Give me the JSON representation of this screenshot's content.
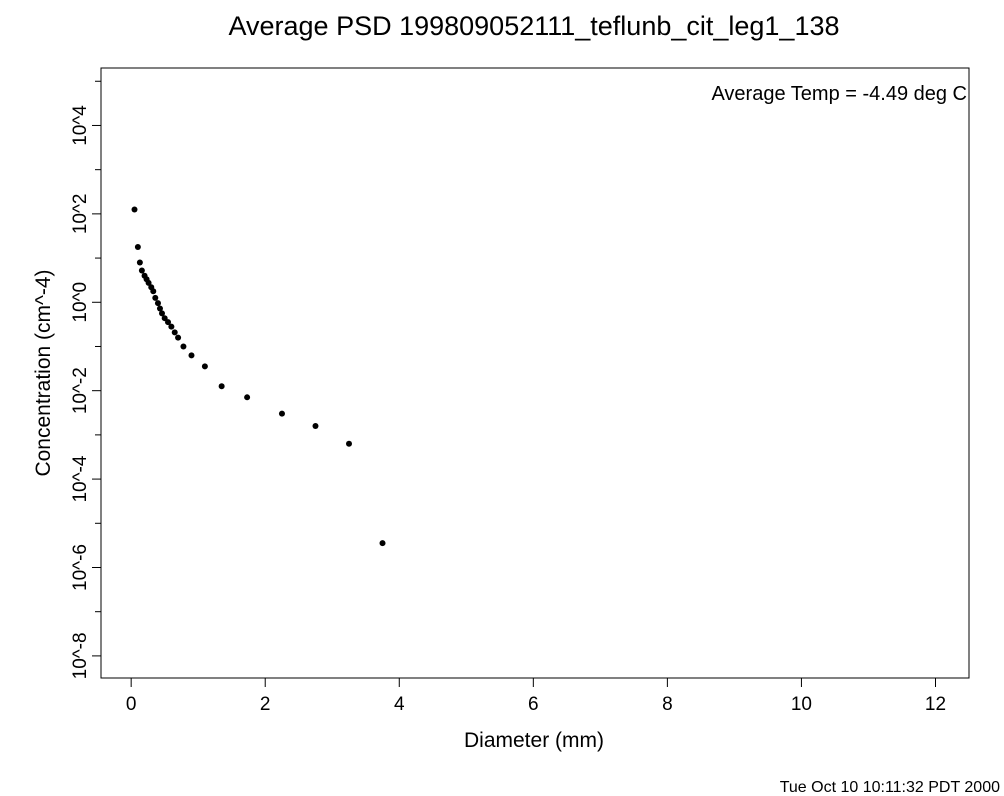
{
  "chart_data": {
    "type": "scatter",
    "title": "Average PSD 199809052111_teflunb_cit_leg1_138",
    "xlabel": "Diameter (mm)",
    "ylabel": "Concentration (cm^-4)",
    "xlim": [
      -0.45,
      12.5
    ],
    "ylim_log10": [
      -8.5,
      5.3
    ],
    "y_scale": "log",
    "grid": false,
    "x_ticks": [
      0,
      2,
      4,
      6,
      8,
      10,
      12
    ],
    "x_tick_labels": [
      "0",
      "2",
      "4",
      "6",
      "8",
      "10",
      "12"
    ],
    "y_ticks_log10": [
      -8,
      -6,
      -4,
      -2,
      0,
      2,
      4
    ],
    "y_tick_labels": [
      "10^-8",
      "10^-6",
      "10^-4",
      "10^-2",
      "10^0",
      "10^2",
      "10^4"
    ],
    "y_minor_ticks_log10": [
      -7,
      -5,
      -3,
      -1,
      1,
      3,
      5
    ],
    "annotation": "Average Temp = -4.49 deg C",
    "points": [
      {
        "x": 0.05,
        "log10_y": 2.1
      },
      {
        "x": 0.1,
        "log10_y": 1.25
      },
      {
        "x": 0.13,
        "log10_y": 0.9
      },
      {
        "x": 0.16,
        "log10_y": 0.72
      },
      {
        "x": 0.2,
        "log10_y": 0.6
      },
      {
        "x": 0.23,
        "log10_y": 0.52
      },
      {
        "x": 0.26,
        "log10_y": 0.44
      },
      {
        "x": 0.3,
        "log10_y": 0.34
      },
      {
        "x": 0.33,
        "log10_y": 0.25
      },
      {
        "x": 0.36,
        "log10_y": 0.1
      },
      {
        "x": 0.4,
        "log10_y": -0.02
      },
      {
        "x": 0.43,
        "log10_y": -0.14
      },
      {
        "x": 0.46,
        "log10_y": -0.25
      },
      {
        "x": 0.5,
        "log10_y": -0.36
      },
      {
        "x": 0.55,
        "log10_y": -0.45
      },
      {
        "x": 0.6,
        "log10_y": -0.55
      },
      {
        "x": 0.65,
        "log10_y": -0.68
      },
      {
        "x": 0.7,
        "log10_y": -0.8
      },
      {
        "x": 0.78,
        "log10_y": -1.0
      },
      {
        "x": 0.9,
        "log10_y": -1.2
      },
      {
        "x": 1.1,
        "log10_y": -1.45
      },
      {
        "x": 1.35,
        "log10_y": -1.9
      },
      {
        "x": 1.73,
        "log10_y": -2.15
      },
      {
        "x": 2.25,
        "log10_y": -2.52
      },
      {
        "x": 2.75,
        "log10_y": -2.8
      },
      {
        "x": 3.25,
        "log10_y": -3.2
      },
      {
        "x": 3.75,
        "log10_y": -5.45
      }
    ]
  },
  "timestamp": "Tue Oct 10 10:11:32 PDT 2000"
}
